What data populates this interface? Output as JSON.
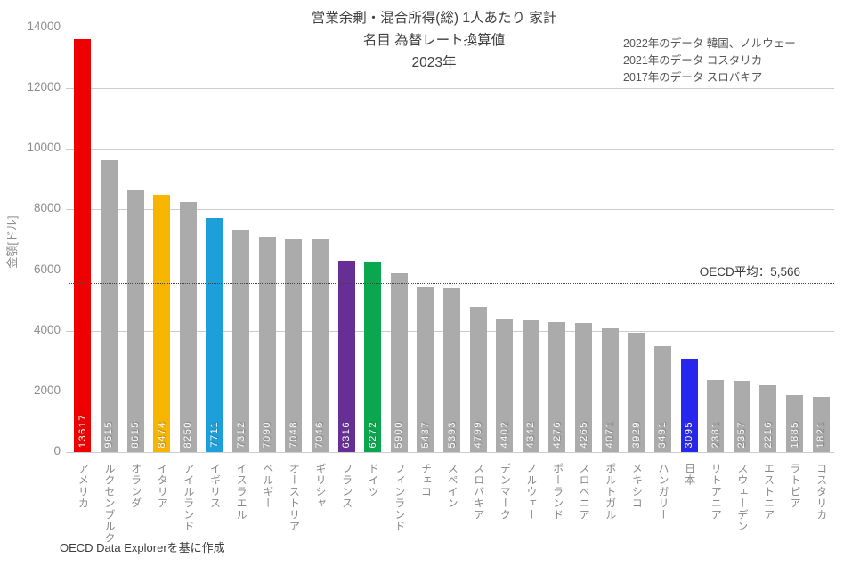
{
  "chart_data": {
    "type": "bar",
    "title_lines": [
      "営業余剰・混合所得(総) 1人あたり 家計",
      "名目 為替レート換算値",
      "2023年"
    ],
    "ylabel": "金額[ドル]",
    "ylim": [
      0,
      14000
    ],
    "yticks": [
      0,
      2000,
      4000,
      6000,
      8000,
      10000,
      12000,
      14000
    ],
    "grid": true,
    "legend": false,
    "categories": [
      "アメリカ",
      "ルクセンブルク",
      "オランダ",
      "イタリア",
      "アイルランド",
      "イギリス",
      "イスラエル",
      "ベルギー",
      "オーストリア",
      "ギリシャ",
      "フランス",
      "ドイツ",
      "フィンランド",
      "チェコ",
      "スペイン",
      "スロバキア",
      "デンマーク",
      "ノルウェー",
      "ポーランド",
      "スロベニア",
      "ポルトガル",
      "メキシコ",
      "ハンガリー",
      "日本",
      "リトアニア",
      "スウェーデン",
      "エストニア",
      "ラトビア",
      "コスタリカ"
    ],
    "values": [
      13617,
      9615,
      8615,
      8474,
      8250,
      7711,
      7312,
      7090,
      7048,
      7046,
      6316,
      6272,
      5900,
      5437,
      5393,
      4799,
      4402,
      4342,
      4276,
      4265,
      4071,
      3929,
      3491,
      3095,
      2381,
      2357,
      2216,
      1885,
      1821
    ],
    "bar_colors": [
      "#ee0000",
      "#ababab",
      "#ababab",
      "#f7b500",
      "#ababab",
      "#1d9fd9",
      "#ababab",
      "#ababab",
      "#ababab",
      "#ababab",
      "#672f96",
      "#0aa74f",
      "#ababab",
      "#ababab",
      "#ababab",
      "#ababab",
      "#ababab",
      "#ababab",
      "#ababab",
      "#ababab",
      "#ababab",
      "#ababab",
      "#ababab",
      "#2626ee",
      "#ababab",
      "#ababab",
      "#ababab",
      "#ababab",
      "#ababab"
    ],
    "average_line": {
      "value": 5566,
      "label": "OECD平均：5,566",
      "style": "dotted"
    }
  },
  "annotations": {
    "data_year_notes": [
      "2022年のデータ 韓国、ノルウェー",
      "2021年のデータ コスタリカ",
      "2017年のデータ スロバキア"
    ],
    "source": "OECD Data Explorerを基に作成"
  },
  "colors": {
    "grid": "#cccccc",
    "bar_default": "#ababab",
    "value_text": "#ffffff",
    "tick_text": "#8c8c8c",
    "category_text": "#888888",
    "title_text": "#404040",
    "note_text": "#555555",
    "average_line": "#444444"
  }
}
